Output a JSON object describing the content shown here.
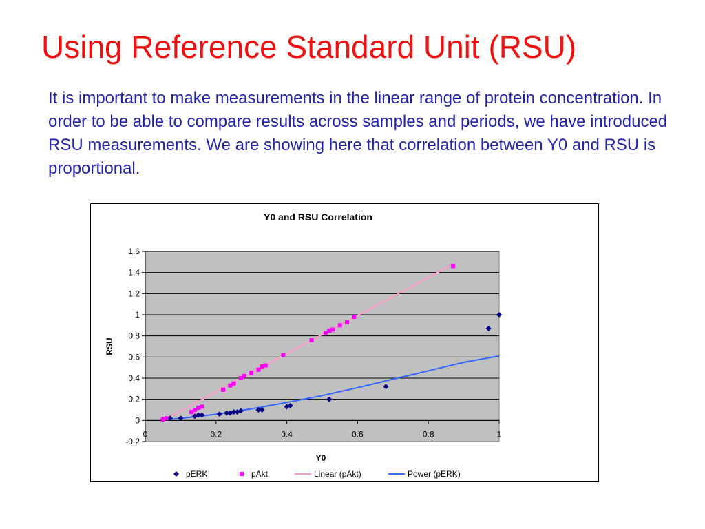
{
  "slide": {
    "title": "Using Reference Standard Unit (RSU)",
    "body": "It is important to make measurements in the linear range of protein concentration.  In order to be able to compare results across samples and periods, we have introduced RSU measurements.  We are showing here that correlation between Y0 and RSU is proportional."
  },
  "colors": {
    "title": "#ee1111",
    "body": "#2222aa",
    "plot_area": "#c0c0c0",
    "gridline": "#000000",
    "pERK_marker": "#000080",
    "pAkt_marker": "#ff00ff",
    "linear_pAkt_line": "#ff99cc",
    "power_pERK_line": "#3366ff"
  },
  "chart_data": {
    "type": "scatter",
    "title": "Y0 and RSU Correlation",
    "xlabel": "Y0",
    "ylabel": "RSU",
    "xlim": [
      0,
      1
    ],
    "ylim": [
      -0.2,
      1.6
    ],
    "xticks": [
      "0",
      "0.2",
      "0.4",
      "0.6",
      "0.8",
      "1"
    ],
    "yticks": [
      "1.6",
      "1.4",
      "1.2",
      "1",
      "0.8",
      "0.6",
      "0.4",
      "0.2",
      "0",
      "-0.2"
    ],
    "grid": "horizontal",
    "legend_position": "bottom",
    "series": [
      {
        "name": "pERK",
        "marker": "diamond",
        "color": "#000080",
        "points": [
          [
            0.05,
            0.01
          ],
          [
            0.07,
            0.02
          ],
          [
            0.1,
            0.02
          ],
          [
            0.14,
            0.04
          ],
          [
            0.15,
            0.05
          ],
          [
            0.16,
            0.05
          ],
          [
            0.21,
            0.06
          ],
          [
            0.23,
            0.07
          ],
          [
            0.24,
            0.07
          ],
          [
            0.25,
            0.08
          ],
          [
            0.26,
            0.08
          ],
          [
            0.27,
            0.09
          ],
          [
            0.32,
            0.1
          ],
          [
            0.33,
            0.1
          ],
          [
            0.4,
            0.13
          ],
          [
            0.41,
            0.14
          ],
          [
            0.52,
            0.2
          ],
          [
            0.68,
            0.32
          ],
          [
            0.97,
            0.87
          ],
          [
            1.0,
            1.0
          ]
        ]
      },
      {
        "name": "pAkt",
        "marker": "square",
        "color": "#ff00ff",
        "points": [
          [
            0.05,
            0.01
          ],
          [
            0.06,
            0.02
          ],
          [
            0.13,
            0.08
          ],
          [
            0.14,
            0.1
          ],
          [
            0.15,
            0.12
          ],
          [
            0.16,
            0.13
          ],
          [
            0.22,
            0.29
          ],
          [
            0.24,
            0.33
          ],
          [
            0.25,
            0.35
          ],
          [
            0.27,
            0.4
          ],
          [
            0.28,
            0.42
          ],
          [
            0.3,
            0.45
          ],
          [
            0.32,
            0.48
          ],
          [
            0.33,
            0.51
          ],
          [
            0.34,
            0.52
          ],
          [
            0.39,
            0.62
          ],
          [
            0.47,
            0.76
          ],
          [
            0.51,
            0.83
          ],
          [
            0.52,
            0.85
          ],
          [
            0.53,
            0.86
          ],
          [
            0.55,
            0.9
          ],
          [
            0.57,
            0.93
          ],
          [
            0.59,
            0.98
          ],
          [
            0.87,
            1.46
          ]
        ]
      },
      {
        "name": "Linear (pAkt)",
        "type": "line",
        "color": "#ff99cc",
        "points": [
          [
            0.05,
            0.0
          ],
          [
            0.87,
            1.48
          ]
        ]
      },
      {
        "name": "Power (pERK)",
        "type": "line",
        "color": "#3366ff",
        "points": [
          [
            0.05,
            0.006
          ],
          [
            0.1,
            0.019
          ],
          [
            0.2,
            0.058
          ],
          [
            0.3,
            0.11
          ],
          [
            0.4,
            0.17
          ],
          [
            0.5,
            0.235
          ],
          [
            0.6,
            0.31
          ],
          [
            0.7,
            0.39
          ],
          [
            0.8,
            0.47
          ],
          [
            0.9,
            0.55
          ],
          [
            1.0,
            0.61
          ]
        ]
      }
    ]
  }
}
